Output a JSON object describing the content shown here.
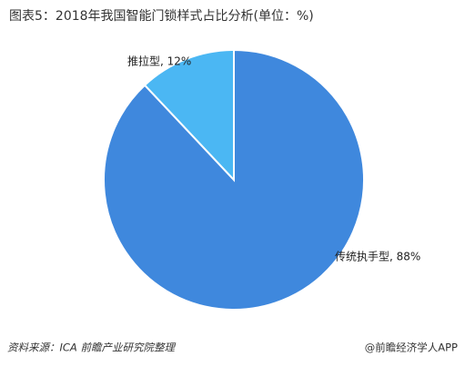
{
  "chart_data": {
    "type": "pie",
    "title": "图表5：2018年我国智能门锁样式占比分析(单位：%)",
    "values": [
      88,
      12
    ],
    "value_labels": [
      "传统执手型, 88%",
      "推拉型, 12%"
    ],
    "colors": [
      "#3f88dd",
      "#4bb7f3"
    ],
    "source": "资料来源：ICA 前瞻产业研究院整理",
    "footer": "@前瞻经济学人APP"
  }
}
